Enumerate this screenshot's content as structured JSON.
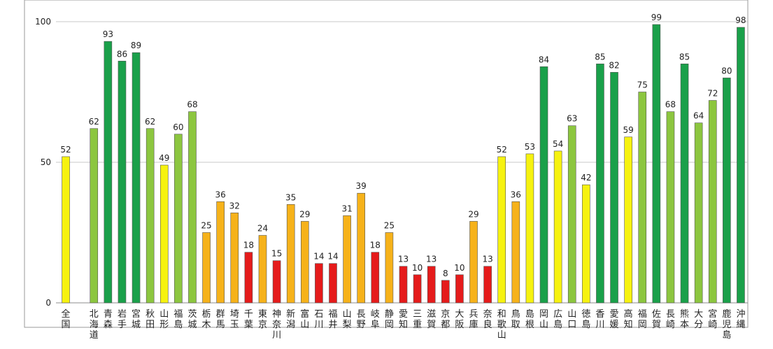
{
  "chart_data": {
    "type": "bar",
    "categories": [
      "全国",
      "",
      "北海道",
      "青森",
      "岩手",
      "宮城",
      "秋田",
      "山形",
      "福島",
      "茨城",
      "栃木",
      "群馬",
      "埼玉",
      "千葉",
      "東京",
      "神奈川",
      "新潟",
      "富山",
      "石川",
      "福井",
      "山梨",
      "長野",
      "岐阜",
      "静岡",
      "愛知",
      "三重",
      "滋賀",
      "京都",
      "大阪",
      "兵庫",
      "奈良",
      "和歌山",
      "鳥取",
      "島根",
      "岡山",
      "広島",
      "山口",
      "徳島",
      "香川",
      "愛媛",
      "高知",
      "福岡",
      "佐賀",
      "長崎",
      "熊本",
      "大分",
      "宮崎",
      "鹿児島",
      "沖縄"
    ],
    "values": [
      52,
      null,
      62,
      93,
      86,
      89,
      62,
      49,
      60,
      68,
      25,
      36,
      32,
      18,
      24,
      15,
      35,
      29,
      14,
      14,
      31,
      39,
      18,
      25,
      13,
      10,
      13,
      8,
      10,
      29,
      13,
      52,
      36,
      53,
      84,
      54,
      63,
      42,
      85,
      82,
      59,
      75,
      99,
      68,
      85,
      64,
      72,
      80,
      98
    ],
    "ylim": [
      0,
      100
    ],
    "yticks": [
      0,
      50,
      100
    ],
    "title": "",
    "xlabel": "",
    "ylabel": "",
    "grid": "horizontal",
    "legend": "none",
    "bar_colors": {
      "dark_green": "#1aa04a",
      "light_green": "#8cc63f",
      "yellow": "#f6f20f",
      "orange": "#f6b21a",
      "red": "#e51b1b"
    },
    "color_rule": "value >= 80 dark_green; 60-79 light_green; 40-59 yellow; 20-39 orange; below 20 red"
  }
}
